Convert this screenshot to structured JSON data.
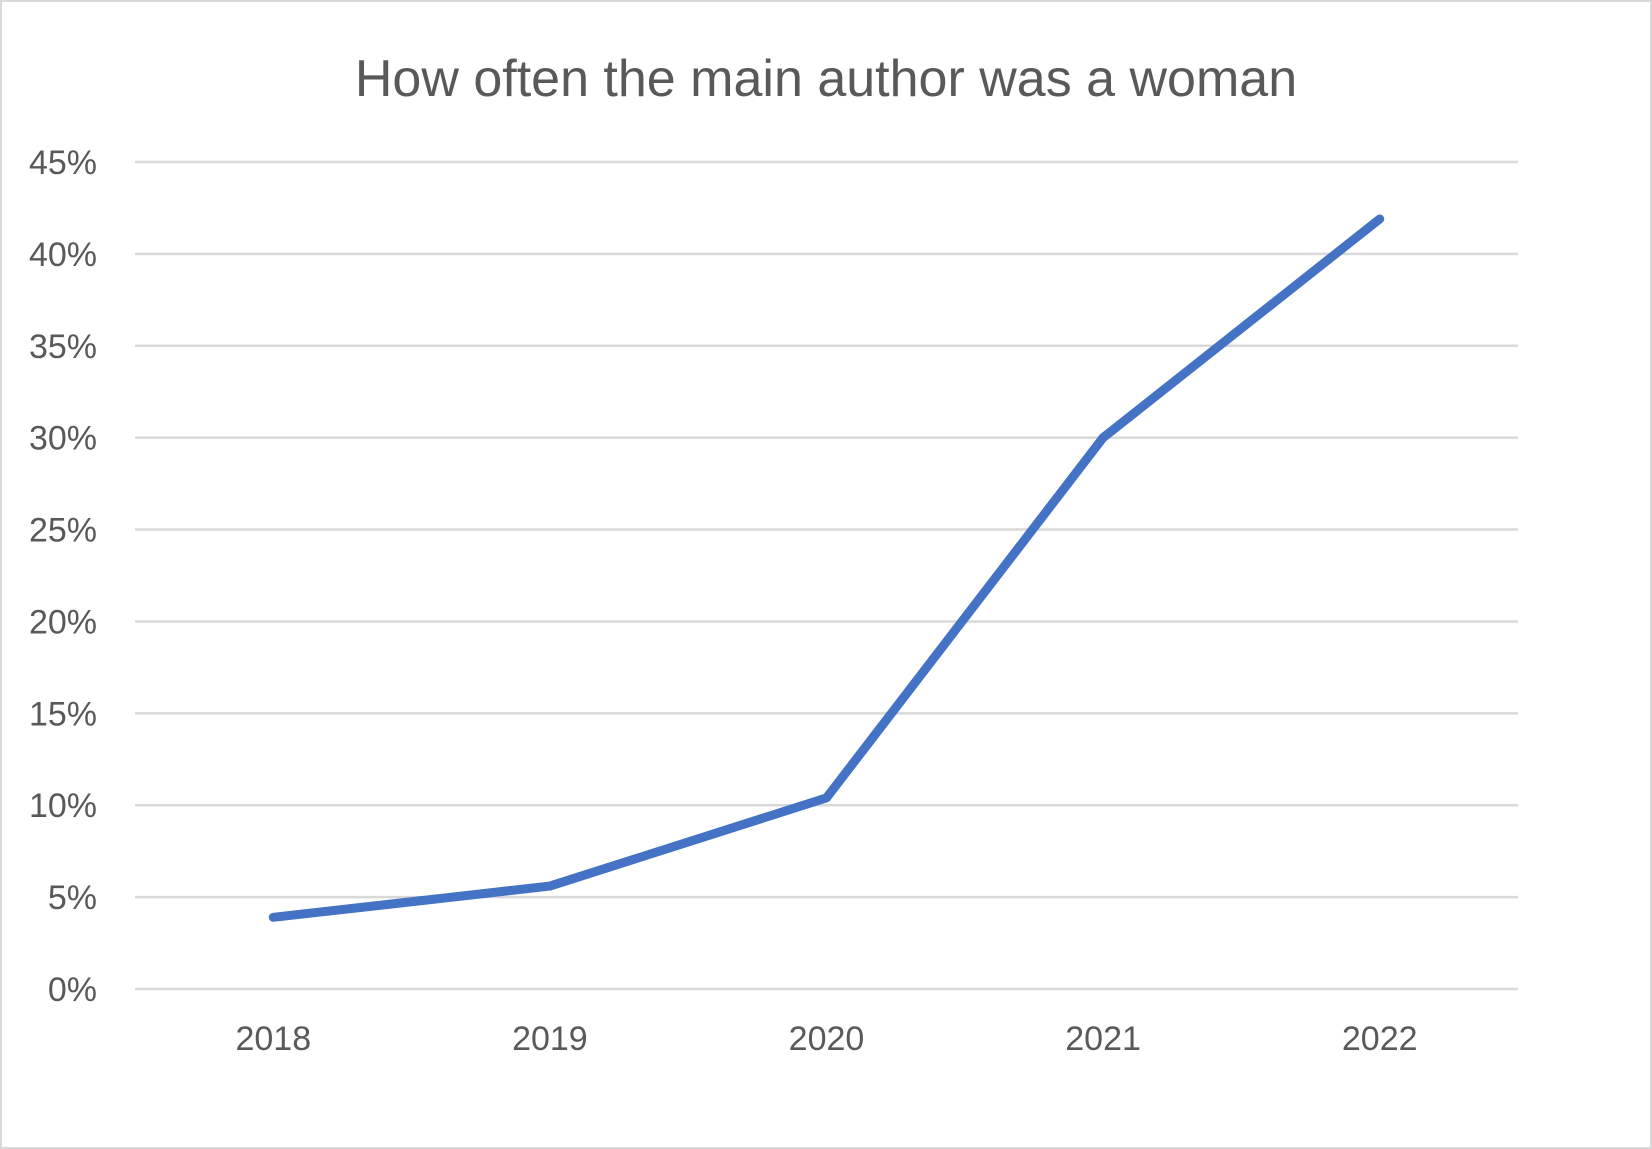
{
  "chart_data": {
    "type": "line",
    "title": "How often the main author was a woman",
    "xlabel": "",
    "ylabel": "",
    "categories": [
      "2018",
      "2019",
      "2020",
      "2021",
      "2022"
    ],
    "series": [
      {
        "values": [
          0.039,
          0.056,
          0.104,
          0.3,
          0.419
        ],
        "color": "#4472c4"
      }
    ],
    "ylim": [
      0,
      0.45
    ],
    "yticks": [
      0,
      0.05,
      0.1,
      0.15,
      0.2,
      0.25,
      0.3,
      0.35,
      0.4,
      0.45
    ],
    "ytick_labels": [
      "0%",
      "5%",
      "10%",
      "15%",
      "20%",
      "25%",
      "30%",
      "35%",
      "40%",
      "45%"
    ],
    "grid": true,
    "legend": "none"
  }
}
